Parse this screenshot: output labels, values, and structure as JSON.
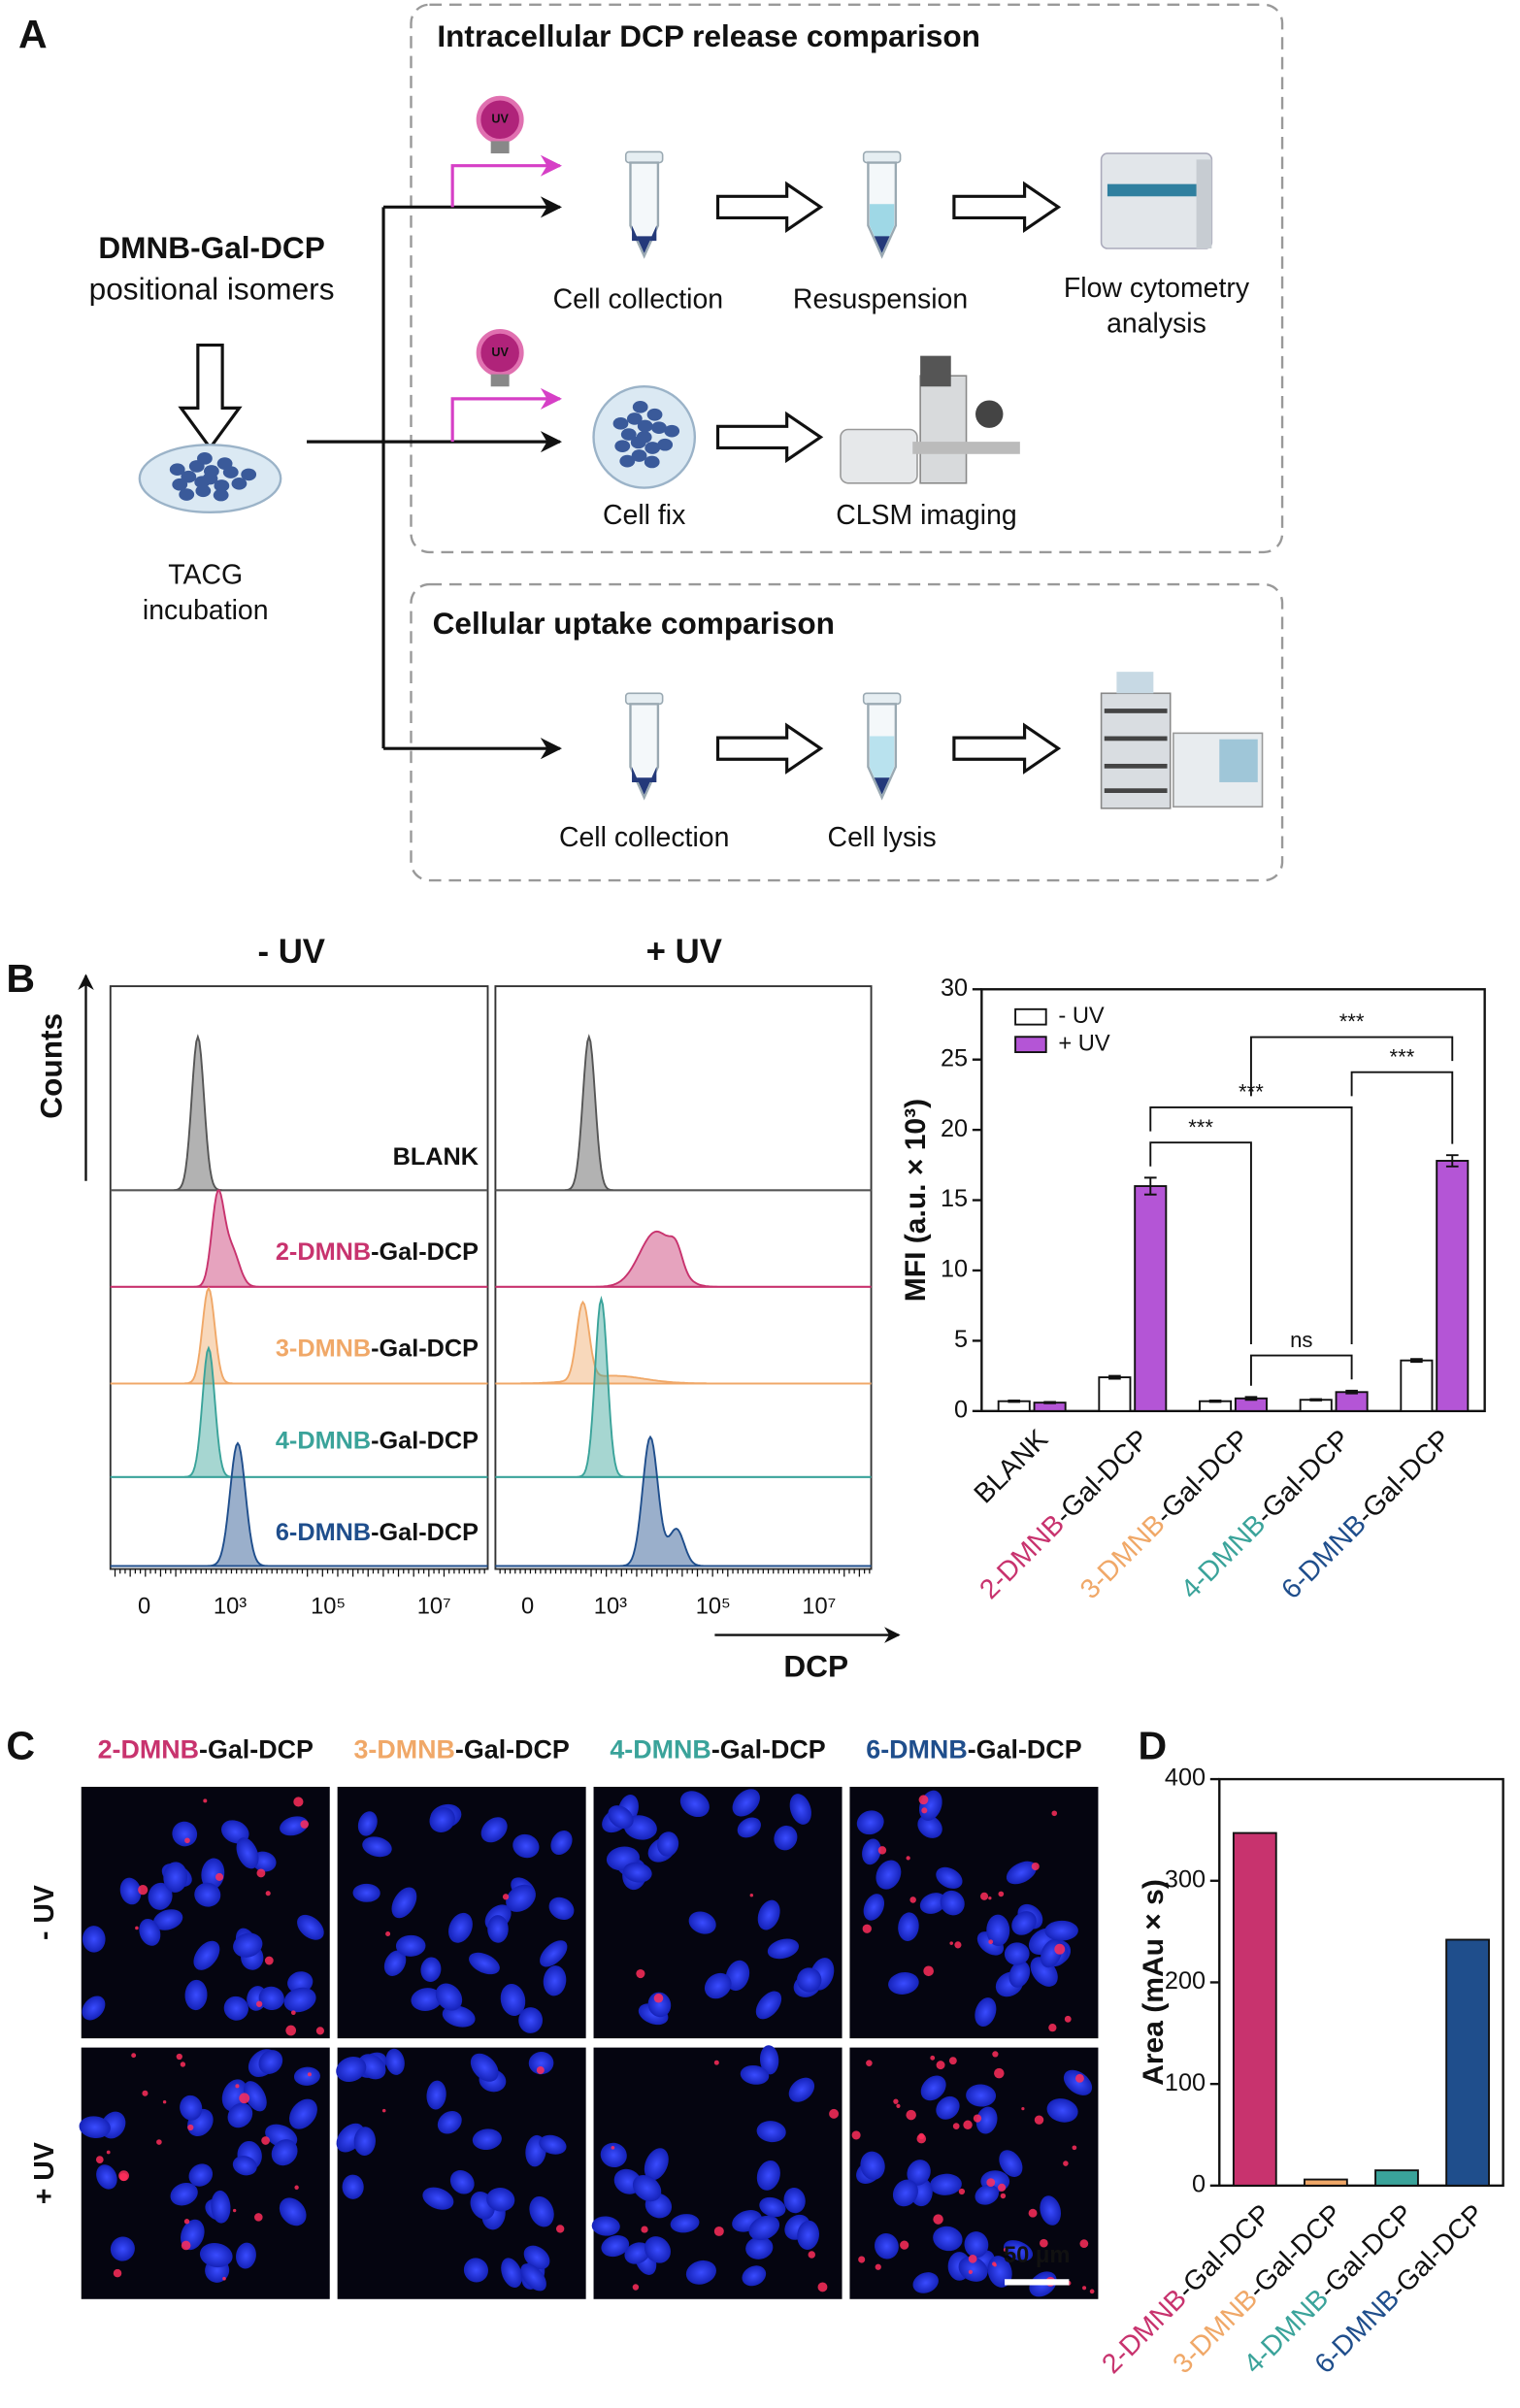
{
  "panel_a": {
    "label": "A",
    "release_title": "Intracellular DCP release comparison",
    "uptake_title": "Cellular uptake comparison",
    "compound": "DMNB-Gal-DCP",
    "compound_note": "positional isomers",
    "incubation": [
      "TACG",
      "incubation"
    ],
    "uv": "UV",
    "row1": [
      "Cell collection",
      "Resuspension"
    ],
    "row1_end": [
      "Flow cytometry",
      "analysis"
    ],
    "row2": [
      "Cell fix",
      "CLSM imaging"
    ],
    "row3": [
      "Cell collection",
      "Cell lysis"
    ]
  },
  "panel_b": {
    "label": "B",
    "titles": [
      "- UV",
      "+ UV"
    ],
    "y_label": "Counts",
    "x_label": "DCP",
    "samples": [
      "BLANK",
      "2-DMNB-Gal-DCP",
      "3-DMNB-Gal-DCP",
      "4-DMNB-Gal-DCP",
      "6-DMNB-Gal-DCP"
    ],
    "sample_colors": [
      "#555555",
      "#c8336e",
      "#f0a868",
      "#3aa39a",
      "#1f4e8c"
    ],
    "xticks": [
      "0",
      "10³",
      "10⁵",
      "10⁷"
    ]
  },
  "chart_data": [
    {
      "type": "bar",
      "ylabel": "MFI (a.u. × 10³)",
      "categories": [
        "BLANK",
        "2-DMNB-Gal-DCP",
        "3-DMNB-Gal-DCP",
        "4-DMNB-Gal-DCP",
        "6-DMNB-Gal-DCP"
      ],
      "category_colors": [
        "#111111",
        "#c8336e",
        "#f0a868",
        "#3aa39a",
        "#1f4e8c"
      ],
      "series": [
        {
          "name": "- UV",
          "color": "#ffffff",
          "values": [
            0.7,
            2.4,
            0.7,
            0.8,
            3.6
          ],
          "errors": [
            0.05,
            0.1,
            0.05,
            0.05,
            0.1
          ]
        },
        {
          "name": "+ UV",
          "color": "#b455d6",
          "values": [
            0.6,
            16.0,
            0.9,
            1.35,
            17.8
          ],
          "errors": [
            0.05,
            0.6,
            0.1,
            0.1,
            0.4
          ]
        }
      ],
      "ylim": [
        0,
        30
      ],
      "yticks": [
        0,
        5,
        10,
        15,
        20,
        25,
        30
      ],
      "legend": "upper left",
      "annotations": [
        {
          "text": "ns",
          "between": [
            2,
            3
          ]
        },
        {
          "text": "***",
          "between": [
            1,
            2
          ]
        },
        {
          "text": "***",
          "between": [
            1,
            3
          ]
        },
        {
          "text": "***",
          "between": [
            3,
            4
          ]
        },
        {
          "text": "***",
          "between": [
            2,
            4
          ]
        }
      ]
    },
    {
      "type": "bar",
      "ylabel": "Area (mAu × s)",
      "categories": [
        "2-DMNB-Gal-DCP",
        "3-DMNB-Gal-DCP",
        "4-DMNB-Gal-DCP",
        "6-DMNB-Gal-DCP"
      ],
      "colors": [
        "#c8336e",
        "#f0a868",
        "#3aa39a",
        "#1f4e8c"
      ],
      "values": [
        347,
        6,
        15,
        242
      ],
      "ylim": [
        0,
        400
      ],
      "yticks": [
        0,
        100,
        200,
        300,
        400
      ]
    }
  ],
  "panel_c": {
    "label": "C",
    "columns": [
      "2-DMNB-Gal-DCP",
      "3-DMNB-Gal-DCP",
      "4-DMNB-Gal-DCP",
      "6-DMNB-Gal-DCP"
    ],
    "column_colors": [
      "#c8336e",
      "#f0a868",
      "#3aa39a",
      "#1f4e8c"
    ],
    "rows": [
      "- UV",
      "+ UV"
    ],
    "row_colors": [
      "#111111",
      "#b455d6"
    ],
    "scale_bar": "50 μm"
  },
  "panel_d": {
    "label": "D"
  }
}
